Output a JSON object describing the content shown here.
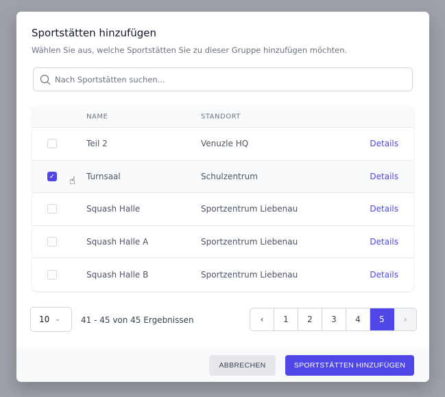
{
  "dialog": {
    "title": "Sportstätten hinzufügen",
    "subtitle": "Wählen Sie aus, welche Sportstätten Sie zu dieser Gruppe hinzufügen möchten.",
    "search_placeholder": "Nach Sportstätten suchen..."
  },
  "table": {
    "headers": [
      "NAME",
      "STANDORT"
    ],
    "rows": [
      {
        "name": "Teil 2",
        "location": "Venuzle HQ",
        "action": "Details",
        "checked": false
      },
      {
        "name": "Turnsaal",
        "location": "Schulzentrum",
        "action": "Details",
        "checked": true
      },
      {
        "name": "Squash Halle",
        "location": "Sportzentrum Liebenau",
        "action": "Details",
        "checked": false
      },
      {
        "name": "Squash Halle A",
        "location": "Sportzentrum Liebenau",
        "action": "Details",
        "checked": false
      },
      {
        "name": "Squash Halle B",
        "location": "Sportzentrum Liebenau",
        "action": "Details",
        "checked": false
      }
    ]
  },
  "pagination": {
    "per_page": "10",
    "summary": "41 - 45 von 45 Ergebnissen",
    "pages": [
      "1",
      "2",
      "3",
      "4",
      "5"
    ],
    "current": "5"
  },
  "footer": {
    "cancel": "ABBRECHEN",
    "add": "SPORTSTÄTTEN HINZUFÜGEN"
  },
  "colors": {
    "accent": "#4f46e5"
  }
}
